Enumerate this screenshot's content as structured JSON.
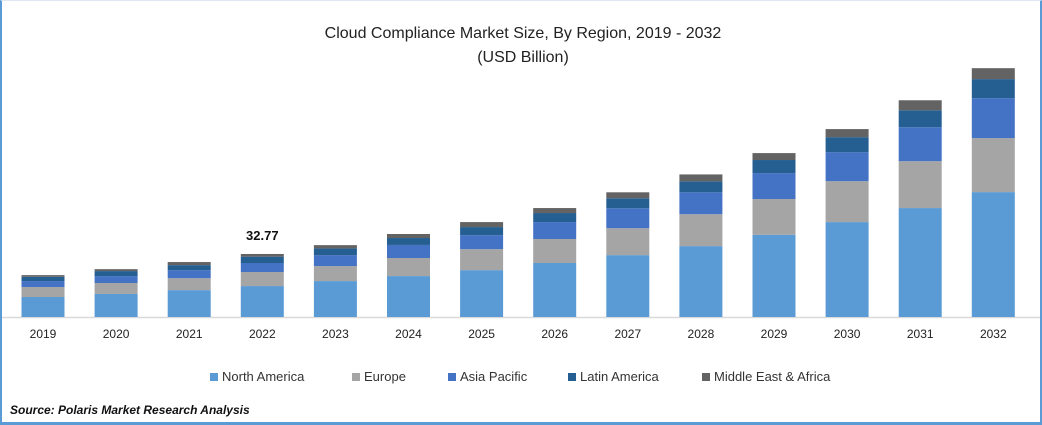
{
  "chart_data": {
    "type": "bar",
    "stacked": true,
    "title": "Cloud Compliance Market Size, By Region, 2019 - 2032",
    "subtitle": "(USD Billion)",
    "xlabel": "",
    "ylabel": "",
    "ylim": [
      0,
      140
    ],
    "grid": false,
    "legend_placement": "bottom",
    "categories": [
      "2019",
      "2020",
      "2021",
      "2022",
      "2023",
      "2024",
      "2025",
      "2026",
      "2027",
      "2028",
      "2029",
      "2030",
      "2031",
      "2032"
    ],
    "series": [
      {
        "name": "North America",
        "color": "#5B9BD5",
        "values": [
          10.4,
          12.0,
          14.0,
          16.1,
          18.7,
          21.3,
          24.4,
          28.1,
          32.2,
          36.9,
          42.8,
          49.4,
          56.7,
          65.0
        ]
      },
      {
        "name": "Europe",
        "color": "#A5A5A5",
        "values": [
          5.2,
          5.7,
          6.2,
          7.3,
          7.8,
          9.4,
          10.9,
          12.5,
          14.0,
          16.6,
          18.6,
          21.3,
          24.4,
          28.1
        ]
      },
      {
        "name": "Asia Pacific",
        "color": "#4472C4",
        "values": [
          3.1,
          3.6,
          4.2,
          4.7,
          5.7,
          6.8,
          7.3,
          8.8,
          10.4,
          11.4,
          13.5,
          15.1,
          17.7,
          20.8
        ]
      },
      {
        "name": "Latin America",
        "color": "#255E91",
        "values": [
          2.2,
          2.6,
          2.6,
          3.3,
          3.5,
          3.6,
          4.2,
          4.7,
          5.2,
          5.7,
          6.8,
          7.8,
          8.8,
          9.9
        ]
      },
      {
        "name": "Middle East & Africa",
        "color": "#636363",
        "values": [
          0.9,
          1.0,
          1.6,
          1.4,
          1.7,
          2.1,
          2.6,
          2.6,
          3.1,
          3.6,
          3.6,
          4.2,
          5.2,
          5.7
        ]
      }
    ],
    "annotations": [
      {
        "category": "2022",
        "text": "32.77"
      }
    ]
  },
  "source": "Source: Polaris  Market Research Analysis"
}
